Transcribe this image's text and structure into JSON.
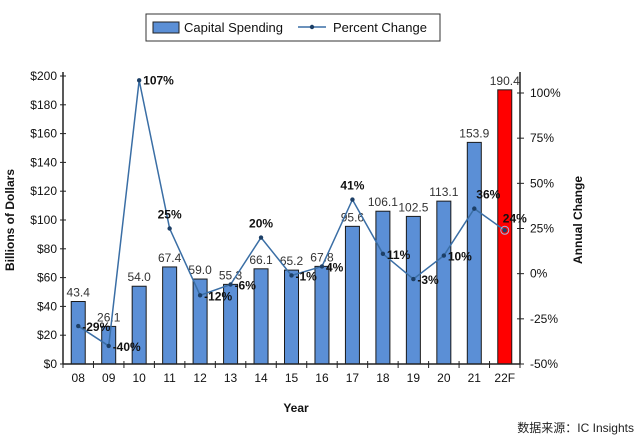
{
  "chart_data": {
    "type": "bar",
    "categories": [
      "08",
      "09",
      "10",
      "11",
      "12",
      "13",
      "14",
      "15",
      "16",
      "17",
      "18",
      "19",
      "20",
      "21",
      "22F"
    ],
    "series": [
      {
        "name": "Capital Spending",
        "type": "bar",
        "axis": "left",
        "values": [
          43.4,
          26.1,
          54.0,
          67.4,
          59.0,
          55.3,
          66.1,
          65.2,
          67.8,
          95.6,
          106.1,
          102.5,
          113.1,
          153.9,
          190.4
        ],
        "labels": [
          "43.4",
          "26.1",
          "54.0",
          "67.4",
          "59.0",
          "55.3",
          "66.1",
          "65.2",
          "67.8",
          "95.6",
          "106.1",
          "102.5",
          "113.1",
          "153.9",
          "190.4"
        ],
        "color": "#5b8fd6",
        "highlight_color": "#ff0000",
        "highlight_category": "22F"
      },
      {
        "name": "Percent Change",
        "type": "line",
        "axis": "right",
        "values": [
          -29,
          -40,
          107,
          25,
          -12,
          -6,
          20,
          -1,
          4,
          41,
          11,
          -3,
          10,
          36,
          24
        ],
        "labels": [
          "-29%",
          "-40%",
          "107%",
          "25%",
          "-12%",
          "-6%",
          "20%",
          "-1%",
          "4%",
          "41%",
          "11%",
          "-3%",
          "10%",
          "36%",
          "24%"
        ],
        "color": "#3a6ea5"
      }
    ],
    "xlabel": "Year",
    "ylabel": "Billions of Dollars",
    "y2label": "Annual Change",
    "ylim": [
      0,
      200
    ],
    "y2lim": [
      -50,
      100
    ],
    "yticks": [
      "$0",
      "$20",
      "$40",
      "$60",
      "$80",
      "$100",
      "$120",
      "$140",
      "$160",
      "$180",
      "$200"
    ],
    "y2ticks": [
      "-50%",
      "-25%",
      "0%",
      "25%",
      "50%",
      "75%",
      "100%"
    ],
    "grid": false,
    "legend": "top"
  },
  "legend": {
    "bar": "Capital Spending",
    "line": "Percent Change"
  },
  "source": "数据来源：IC Insights"
}
